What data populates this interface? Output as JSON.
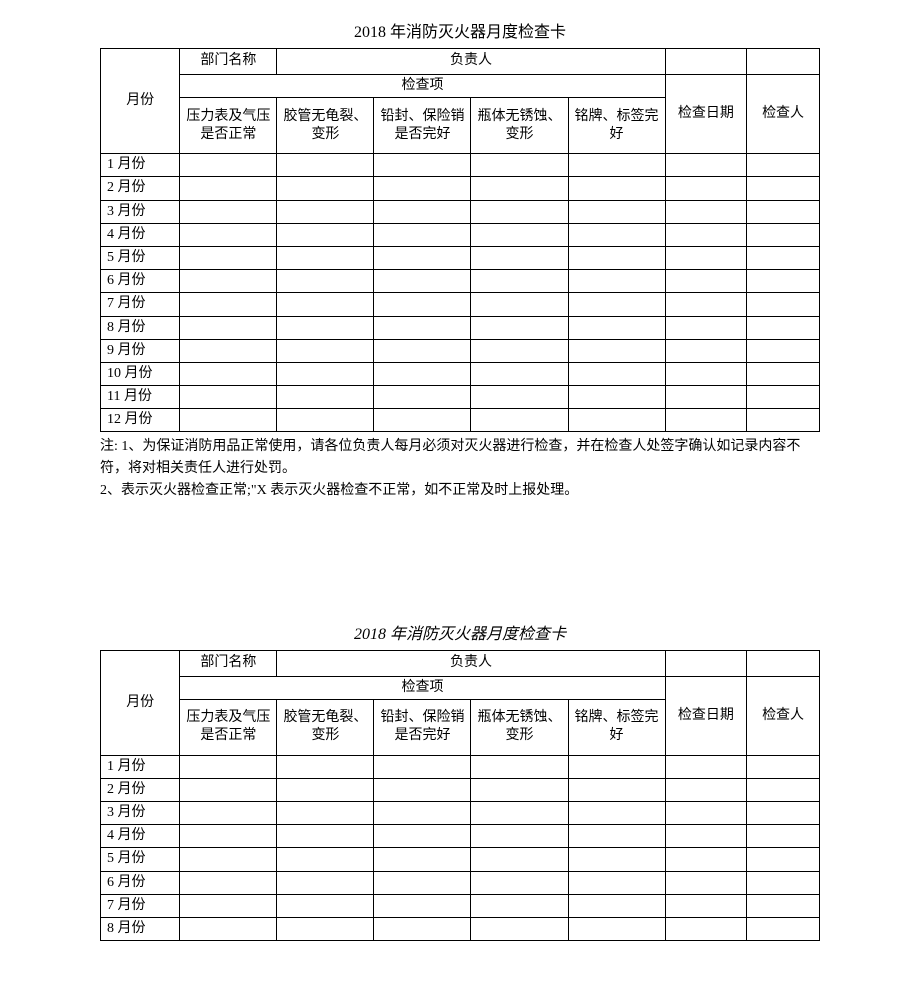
{
  "card1": {
    "title": "2018 年消防灭火器月度检查卡",
    "header": {
      "month": "月份",
      "dept_label": "部门名称",
      "owner_label": "负责人",
      "check_group": "检查项",
      "checks": [
        "压力表及气压是否正常",
        "胶管无龟裂、变形",
        "铅封、保险销是否完好",
        "瓶体无锈蚀、变形",
        "铭牌、标签完好"
      ],
      "check_date": "检查日期",
      "inspector": "检查人"
    },
    "months": [
      "1 月份",
      "2 月份",
      "3 月份",
      "4 月份",
      "5 月份",
      "6 月份",
      "7 月份",
      "8 月份",
      "9 月份",
      "10 月份",
      "11 月份",
      "12 月份"
    ],
    "notes": [
      "注: 1、为保证消防用品正常使用，请各位负责人每月必须对灭火器进行检查，并在检查人处签字确认如记录内容不符，将对相关责任人进行处罚。",
      "2、表示灭火器检查正常;\"X 表示灭火器检查不正常，如不正常及时上报处理。"
    ]
  },
  "card2": {
    "title": "2018 年消防灭火器月度检查卡",
    "header": {
      "month": "月份",
      "dept_label": "部门名称",
      "owner_label": "负责人",
      "check_group": "检查项",
      "checks": [
        "压力表及气压是否正常",
        "胶管无龟裂、变形",
        "铅封、保险销是否完好",
        "瓶体无锈蚀、变形",
        "铭牌、标签完好"
      ],
      "check_date": "检查日期",
      "inspector": "检查人"
    },
    "months": [
      "1 月份",
      "2 月份",
      "3 月份",
      "4 月份",
      "5 月份",
      "6 月份",
      "7 月份",
      "8 月份"
    ]
  }
}
